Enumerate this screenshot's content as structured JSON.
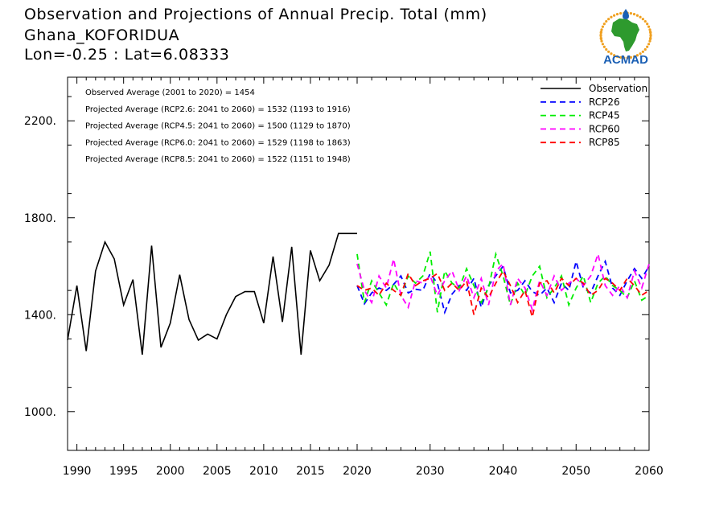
{
  "header": {
    "title_line1": "Observation and Projections of Annual Precip. Total (mm)",
    "title_line2": "Ghana_KOFORIDUA",
    "title_line3": "Lon=-0.25 : Lat=6.08333",
    "logo_text": "ACMAD"
  },
  "colors": {
    "observation": "#000000",
    "rcp26": "#0000ff",
    "rcp45": "#00ee00",
    "rcp60": "#ff00ff",
    "rcp85": "#ff0000",
    "logo_text": "#1a5fb4",
    "logo_africa": "#2e9a2e",
    "logo_sun": "#f0a020"
  },
  "chart_data": {
    "type": "line",
    "annotations": [
      "Observed Average (2001 to 2020) = 1454",
      "Projected Average (RCP2.6: 2041 to 2060) = 1532 (1193 to 1916)",
      "Projected Average (RCP4.5: 2041 to 2060) = 1500 (1129 to 1870)",
      "Projected Average (RCP6.0: 2041 to 2060) = 1529 (1198 to 1863)",
      "Projected Average (RCP8.5: 2041 to 2060) = 1522 (1151 to 1948)"
    ],
    "legend_position": "top-right",
    "y_ticks": [
      1000,
      1400,
      1800,
      2200
    ],
    "y_tick_labels": [
      "1000.",
      "1400.",
      "1800.",
      "2200."
    ],
    "x_tick_labels_left": [
      "1990",
      "1995",
      "2000",
      "2005",
      "2010",
      "2015",
      "2020"
    ],
    "x_tick_labels_right": [
      "2030",
      "2040",
      "2050",
      "2060"
    ],
    "ylim": [
      840,
      2380
    ],
    "series": [
      {
        "name": "Observation",
        "style": "solid",
        "x": [
          1989,
          1990,
          1991,
          1992,
          1993,
          1994,
          1995,
          1996,
          1997,
          1998,
          1999,
          2000,
          2001,
          2002,
          2003,
          2004,
          2005,
          2006,
          2007,
          2008,
          2009,
          2010,
          2011,
          2012,
          2013,
          2014,
          2015,
          2016,
          2017,
          2018,
          2019,
          2020
        ],
        "values": [
          1295,
          1520,
          1250,
          1580,
          1700,
          1630,
          1440,
          1545,
          1235,
          1685,
          1265,
          1365,
          1565,
          1380,
          1295,
          1320,
          1300,
          1400,
          1475,
          1495,
          1495,
          1365,
          1640,
          1370,
          1680,
          1235,
          1665,
          1540,
          1605,
          1735,
          1735,
          1735
        ]
      },
      {
        "name": "RCP26",
        "style": "dashed",
        "x": [
          2020,
          2021,
          2022,
          2023,
          2024,
          2025,
          2026,
          2027,
          2028,
          2029,
          2030,
          2031,
          2032,
          2033,
          2034,
          2035,
          2036,
          2037,
          2038,
          2039,
          2040,
          2041,
          2042,
          2043,
          2044,
          2045,
          2046,
          2047,
          2048,
          2049,
          2050,
          2051,
          2052,
          2053,
          2054,
          2055,
          2056,
          2057,
          2058,
          2059,
          2060
        ],
        "values": [
          1520,
          1445,
          1490,
          1510,
          1500,
          1525,
          1560,
          1490,
          1505,
          1500,
          1570,
          1530,
          1410,
          1485,
          1520,
          1500,
          1550,
          1430,
          1520,
          1560,
          1600,
          1490,
          1500,
          1540,
          1495,
          1480,
          1510,
          1450,
          1530,
          1500,
          1620,
          1510,
          1490,
          1560,
          1620,
          1510,
          1480,
          1540,
          1590,
          1550,
          1600
        ]
      },
      {
        "name": "RCP45",
        "style": "dashed",
        "x": [
          2020,
          2021,
          2022,
          2023,
          2024,
          2025,
          2026,
          2027,
          2028,
          2029,
          2030,
          2031,
          2032,
          2033,
          2034,
          2035,
          2036,
          2037,
          2038,
          2039,
          2040,
          2041,
          2042,
          2043,
          2044,
          2045,
          2046,
          2047,
          2048,
          2049,
          2050,
          2051,
          2052,
          2053,
          2054,
          2055,
          2056,
          2057,
          2058,
          2059,
          2060
        ],
        "values": [
          1650,
          1450,
          1540,
          1490,
          1440,
          1530,
          1480,
          1560,
          1530,
          1560,
          1660,
          1410,
          1580,
          1530,
          1510,
          1590,
          1520,
          1450,
          1510,
          1650,
          1560,
          1440,
          1530,
          1480,
          1560,
          1600,
          1470,
          1510,
          1560,
          1440,
          1510,
          1560,
          1450,
          1530,
          1560,
          1520,
          1500,
          1470,
          1540,
          1460,
          1480
        ]
      },
      {
        "name": "RCP60",
        "style": "dashed",
        "x": [
          2020,
          2021,
          2022,
          2023,
          2024,
          2025,
          2026,
          2027,
          2028,
          2029,
          2030,
          2031,
          2032,
          2033,
          2034,
          2035,
          2036,
          2037,
          2038,
          2039,
          2040,
          2041,
          2042,
          2043,
          2044,
          2045,
          2046,
          2047,
          2048,
          2049,
          2050,
          2051,
          2052,
          2053,
          2054,
          2055,
          2056,
          2057,
          2058,
          2059,
          2060
        ],
        "values": [
          1610,
          1500,
          1450,
          1560,
          1510,
          1630,
          1480,
          1430,
          1540,
          1530,
          1560,
          1480,
          1540,
          1580,
          1500,
          1560,
          1470,
          1550,
          1440,
          1580,
          1610,
          1440,
          1550,
          1510,
          1420,
          1540,
          1480,
          1560,
          1500,
          1530,
          1550,
          1520,
          1560,
          1650,
          1520,
          1480,
          1520,
          1470,
          1580,
          1510,
          1610
        ]
      },
      {
        "name": "RCP85",
        "style": "dashed",
        "x": [
          2020,
          2021,
          2022,
          2023,
          2024,
          2025,
          2026,
          2027,
          2028,
          2029,
          2030,
          2031,
          2032,
          2033,
          2034,
          2035,
          2036,
          2037,
          2038,
          2039,
          2040,
          2041,
          2042,
          2043,
          2044,
          2045,
          2046,
          2047,
          2048,
          2049,
          2050,
          2051,
          2052,
          2053,
          2054,
          2055,
          2056,
          2057,
          2058,
          2059,
          2060
        ],
        "values": [
          1520,
          1500,
          1510,
          1480,
          1530,
          1500,
          1480,
          1570,
          1520,
          1540,
          1550,
          1570,
          1500,
          1530,
          1500,
          1540,
          1400,
          1510,
          1470,
          1530,
          1580,
          1520,
          1450,
          1500,
          1390,
          1530,
          1540,
          1490,
          1550,
          1520,
          1550,
          1530,
          1480,
          1500,
          1550,
          1530,
          1500,
          1550,
          1520,
          1480,
          1500
        ]
      }
    ]
  }
}
